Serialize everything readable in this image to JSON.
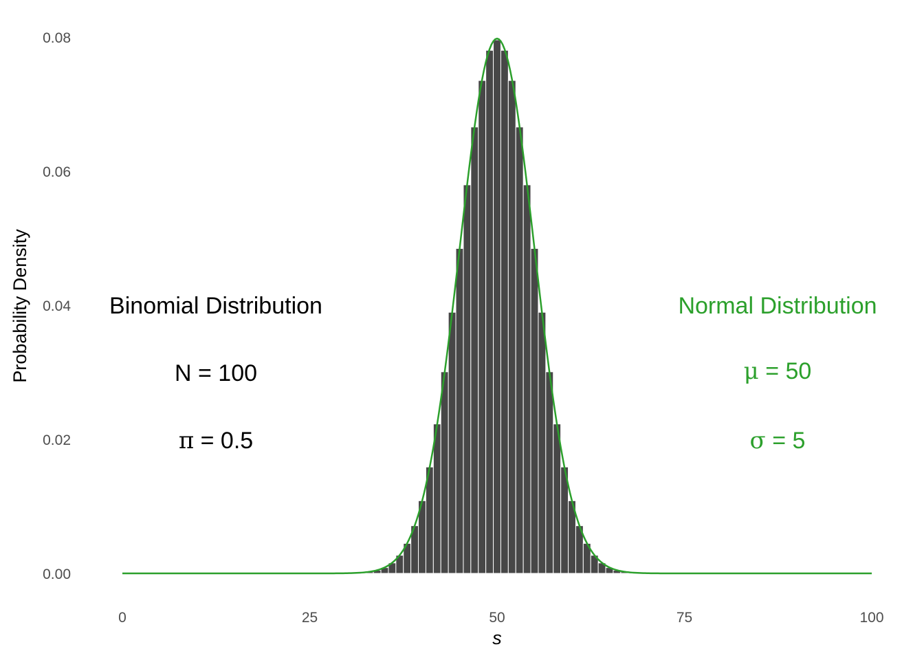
{
  "chart_data": {
    "type": "bar",
    "xlabel": "s",
    "ylabel": "Probability Density",
    "xlim": [
      0,
      100
    ],
    "ylim": [
      0,
      0.08
    ],
    "x_ticks": [
      "0",
      "25",
      "50",
      "75",
      "100"
    ],
    "y_ticks": [
      "0.00",
      "0.02",
      "0.04",
      "0.06",
      "0.08"
    ],
    "grid": false,
    "legend": "none",
    "bars": {
      "x": [
        30,
        31,
        32,
        33,
        34,
        35,
        36,
        37,
        38,
        39,
        40,
        41,
        42,
        43,
        44,
        45,
        46,
        47,
        48,
        49,
        50,
        51,
        52,
        53,
        54,
        55,
        56,
        57,
        58,
        59,
        60,
        61,
        62,
        63,
        64,
        65,
        66,
        67,
        68,
        69,
        70
      ],
      "values": [
        2e-05,
        5e-05,
        0.00011,
        0.00023,
        0.00046,
        0.00086,
        0.00156,
        0.0027,
        0.00447,
        0.00711,
        0.01084,
        0.01587,
        0.02229,
        0.03007,
        0.03895,
        0.04847,
        0.05796,
        0.06659,
        0.07353,
        0.07803,
        0.07959,
        0.07803,
        0.07353,
        0.06659,
        0.05796,
        0.04847,
        0.03895,
        0.03007,
        0.02229,
        0.01587,
        0.01084,
        0.00711,
        0.00447,
        0.0027,
        0.00156,
        0.00086,
        0.00046,
        0.00023,
        0.00011,
        5e-05,
        2e-05
      ],
      "color": "#474747"
    },
    "curve": {
      "mean": 50,
      "sd": 5,
      "color": "#2ca02c"
    },
    "annotations": {
      "binomial": {
        "title": "Binomial Distribution",
        "n_symbol": "N",
        "n_value": "100",
        "p_symbol": "π",
        "p_value": "0.5",
        "color": "#000000"
      },
      "normal": {
        "title": "Normal Distribution",
        "mu_symbol": "μ",
        "mu_value": "50",
        "sigma_symbol": "σ",
        "sigma_value": "5",
        "color": "#2ca02c"
      }
    }
  }
}
